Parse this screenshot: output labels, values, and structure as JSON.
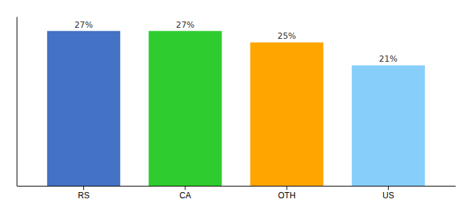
{
  "chart_data": {
    "type": "bar",
    "categories": [
      "RS",
      "CA",
      "OTH",
      "US"
    ],
    "values": [
      27,
      27,
      25,
      21
    ],
    "value_labels": [
      "27%",
      "27%",
      "25%",
      "21%"
    ],
    "colors": [
      "#4472C4",
      "#2ECC2E",
      "#FFA500",
      "#87CEFA"
    ],
    "ylim": [
      0,
      29.5
    ],
    "data_labels": true,
    "tick_labels": "x"
  }
}
